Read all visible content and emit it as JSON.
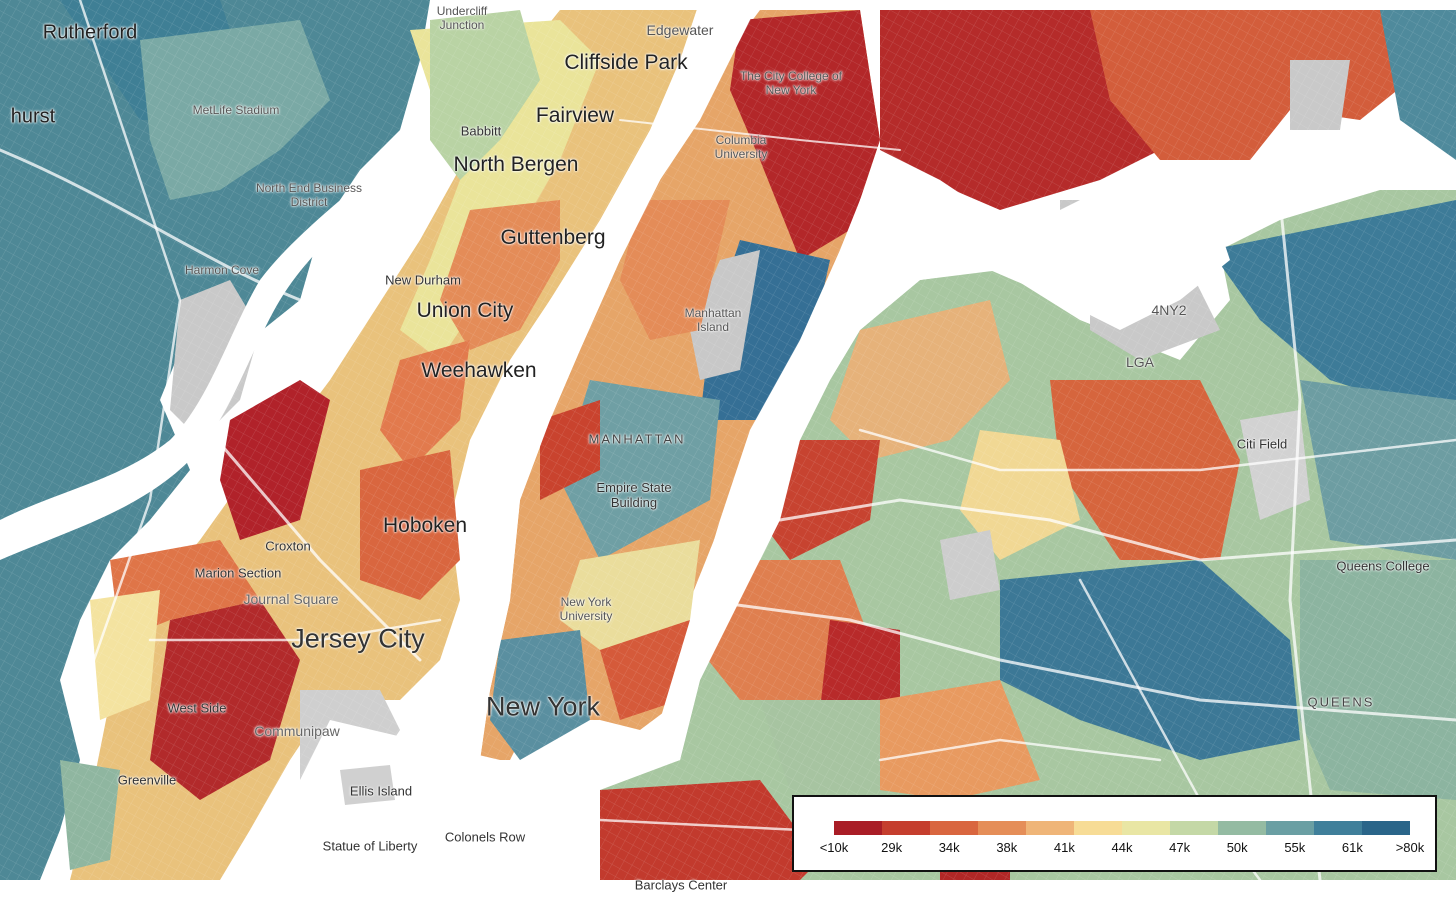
{
  "map": {
    "labels": [
      {
        "id": "rutherford",
        "text": "Rutherford"
      },
      {
        "id": "hurst",
        "text": "hurst"
      },
      {
        "id": "undercliff",
        "text": "Undercliff Junction"
      },
      {
        "id": "edgewater",
        "text": "Edgewater"
      },
      {
        "id": "cliffside-park",
        "text": "Cliffside Park"
      },
      {
        "id": "metlife",
        "text": "MetLife Stadium"
      },
      {
        "id": "fairview",
        "text": "Fairview"
      },
      {
        "id": "babbitt",
        "text": "Babbitt"
      },
      {
        "id": "north-bergen",
        "text": "North Bergen"
      },
      {
        "id": "north-end",
        "text": "North End Business District"
      },
      {
        "id": "guttenberg",
        "text": "Guttenberg"
      },
      {
        "id": "harmon-cove",
        "text": "Harmon Cove"
      },
      {
        "id": "new-durham",
        "text": "New Durham"
      },
      {
        "id": "union-city",
        "text": "Union City"
      },
      {
        "id": "weehawken",
        "text": "Weehawken"
      },
      {
        "id": "hoboken",
        "text": "Hoboken"
      },
      {
        "id": "croxton",
        "text": "Croxton"
      },
      {
        "id": "marion-section",
        "text": "Marion Section"
      },
      {
        "id": "journal-square",
        "text": "Journal Square"
      },
      {
        "id": "jersey-city",
        "text": "Jersey City"
      },
      {
        "id": "west-side",
        "text": "West Side"
      },
      {
        "id": "communipaw",
        "text": "Communipaw"
      },
      {
        "id": "greenville",
        "text": "Greenville"
      },
      {
        "id": "ellis-island",
        "text": "Ellis Island"
      },
      {
        "id": "statue-of-liberty",
        "text": "Statue of Liberty"
      },
      {
        "id": "colonels-row",
        "text": "Colonels Row"
      },
      {
        "id": "city-college",
        "text": "The City College of New York"
      },
      {
        "id": "columbia",
        "text": "Columbia University"
      },
      {
        "id": "manhattan-island",
        "text": "Manhattan Island"
      },
      {
        "id": "manhattan",
        "text": "MANHATTAN"
      },
      {
        "id": "empire-state",
        "text": "Empire State Building"
      },
      {
        "id": "nyu",
        "text": "New York University"
      },
      {
        "id": "new-york",
        "text": "New York"
      },
      {
        "id": "barclays",
        "text": "Barclays Center"
      },
      {
        "id": "4ny2",
        "text": "4NY2"
      },
      {
        "id": "lga",
        "text": "LGA"
      },
      {
        "id": "citi-field",
        "text": "Citi Field"
      },
      {
        "id": "queens-college",
        "text": "Queens College"
      },
      {
        "id": "queens",
        "text": "QUEENS"
      }
    ]
  },
  "legend": {
    "ticks": [
      "<10k",
      "29k",
      "34k",
      "38k",
      "41k",
      "44k",
      "47k",
      "50k",
      "55k",
      "61k",
      ">80k"
    ],
    "colors": [
      "#a91d26",
      "#c53e2e",
      "#d9663f",
      "#e58e58",
      "#efb578",
      "#f7dc96",
      "#e9e6a4",
      "#c4d8a6",
      "#94bba2",
      "#6a9fa3",
      "#3f7f9a",
      "#2a6589"
    ]
  }
}
